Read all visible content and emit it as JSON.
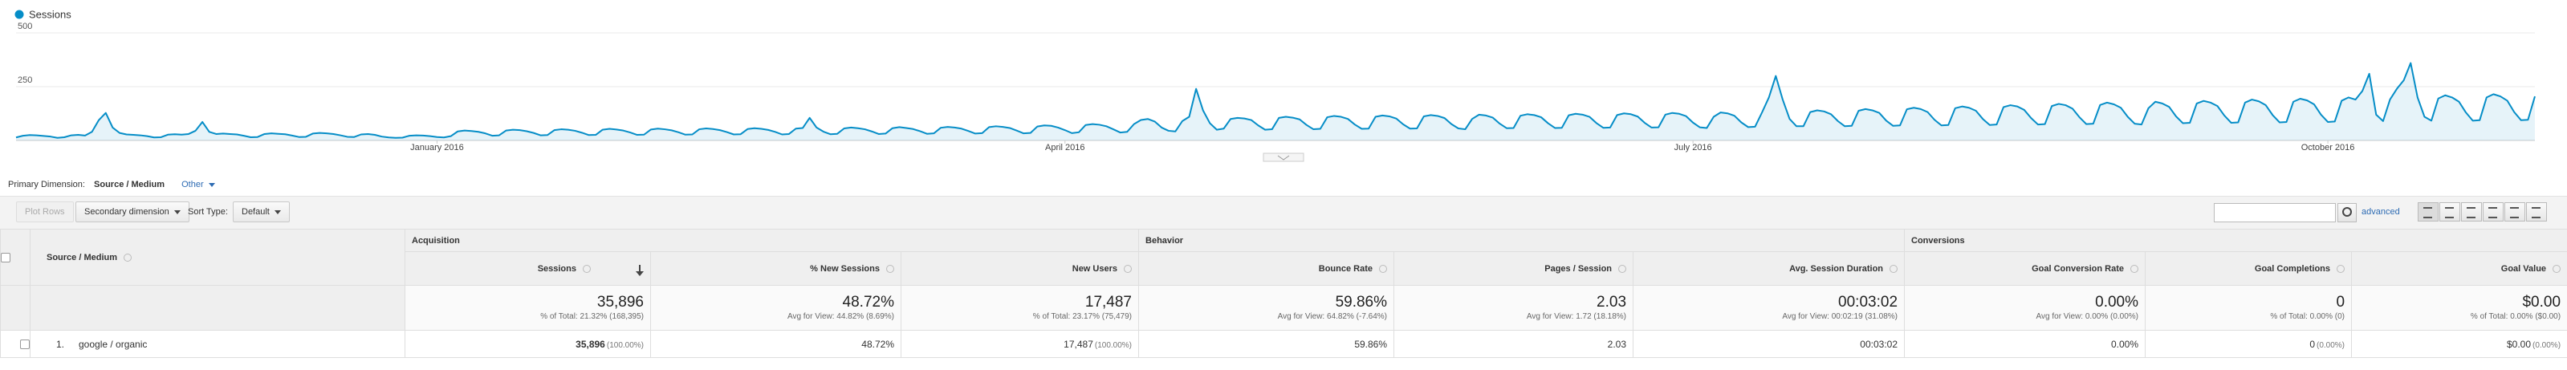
{
  "chart_data": {
    "type": "area",
    "legend": "top-left",
    "grid": true,
    "ylim": [
      0,
      500
    ],
    "yticks": [
      250,
      500
    ],
    "categories": [
      null,
      null,
      null,
      null,
      null,
      null,
      null,
      null,
      null,
      null,
      null,
      null,
      null,
      null,
      null,
      null,
      null,
      null,
      null,
      null,
      null,
      null,
      null,
      null,
      null,
      null,
      null,
      null,
      null,
      null,
      null,
      null,
      null,
      null,
      null,
      null,
      null,
      null,
      null,
      null,
      null,
      null,
      null,
      null,
      null,
      null,
      null,
      null,
      null,
      null,
      null,
      null,
      null,
      null,
      null,
      null,
      null,
      null,
      null,
      null,
      null,
      "January 2016",
      null,
      null,
      null,
      null,
      null,
      null,
      null,
      null,
      null,
      null,
      null,
      null,
      null,
      null,
      null,
      null,
      null,
      null,
      null,
      null,
      null,
      null,
      null,
      null,
      null,
      null,
      null,
      null,
      null,
      null,
      null,
      null,
      null,
      null,
      null,
      null,
      null,
      null,
      null,
      null,
      null,
      null,
      null,
      null,
      null,
      null,
      null,
      null,
      null,
      null,
      null,
      null,
      null,
      null,
      null,
      null,
      null,
      null,
      null,
      null,
      null,
      null,
      null,
      null,
      null,
      null,
      null,
      null,
      null,
      null,
      null,
      null,
      null,
      null,
      null,
      null,
      null,
      null,
      null,
      null,
      null,
      null,
      null,
      null,
      null,
      null,
      null,
      null,
      null,
      null,
      "April 2016",
      null,
      null,
      null,
      null,
      null,
      null,
      null,
      null,
      null,
      null,
      null,
      null,
      null,
      null,
      null,
      null,
      null,
      null,
      null,
      null,
      null,
      null,
      null,
      null,
      null,
      null,
      null,
      null,
      null,
      null,
      null,
      null,
      null,
      null,
      null,
      null,
      null,
      null,
      null,
      null,
      null,
      null,
      null,
      null,
      null,
      null,
      null,
      null,
      null,
      null,
      null,
      null,
      null,
      null,
      null,
      null,
      null,
      null,
      null,
      null,
      null,
      null,
      null,
      null,
      null,
      null,
      null,
      null,
      null,
      null,
      null,
      null,
      null,
      null,
      null,
      null,
      null,
      null,
      null,
      null,
      null,
      null,
      null,
      null,
      null,
      null,
      null,
      null,
      null,
      null,
      "July 2016",
      null,
      null,
      null,
      null,
      null,
      null,
      null,
      null,
      null,
      null,
      null,
      null,
      null,
      null,
      null,
      null,
      null,
      null,
      null,
      null,
      null,
      null,
      null,
      null,
      null,
      null,
      null,
      null,
      null,
      null,
      null,
      null,
      null,
      null,
      null,
      null,
      null,
      null,
      null,
      null,
      null,
      null,
      null,
      null,
      null,
      null,
      null,
      null,
      null,
      null,
      null,
      null,
      null,
      null,
      null,
      null,
      null,
      null,
      null,
      null,
      null,
      null,
      null,
      null,
      null,
      null,
      null,
      null,
      null,
      null,
      null,
      null,
      null,
      null,
      null,
      null,
      null,
      null,
      null,
      null,
      null,
      null,
      null,
      null,
      null,
      null,
      null,
      null,
      null,
      null,
      null,
      "October 2016",
      null,
      null,
      null,
      null,
      null,
      null,
      null,
      null,
      null,
      null,
      null,
      null,
      null,
      null,
      null,
      null,
      null,
      null,
      null,
      null,
      null,
      null,
      null,
      null,
      null,
      null,
      null,
      null,
      null,
      null
    ],
    "series": [
      {
        "name": "Sessions",
        "color": "#058dc7",
        "values": [
          14,
          22,
          25,
          24,
          21,
          18,
          12,
          15,
          24,
          26,
          23,
          40,
          95,
          128,
          60,
          35,
          28,
          26,
          24,
          20,
          14,
          15,
          27,
          29,
          27,
          30,
          45,
          86,
          40,
          30,
          32,
          30,
          28,
          22,
          15,
          16,
          30,
          33,
          31,
          29,
          23,
          16,
          17,
          32,
          35,
          33,
          30,
          24,
          17,
          16,
          28,
          30,
          26,
          18,
          14,
          12,
          13,
          22,
          24,
          23,
          20,
          16,
          14,
          20,
          42,
          46,
          44,
          40,
          33,
          22,
          24,
          46,
          50,
          48,
          43,
          35,
          24,
          25,
          48,
          52,
          50,
          45,
          36,
          25,
          26,
          50,
          54,
          51,
          46,
          37,
          26,
          27,
          51,
          55,
          52,
          47,
          38,
          27,
          28,
          52,
          56,
          53,
          48,
          39,
          28,
          29,
          53,
          57,
          54,
          49,
          40,
          28,
          30,
          55,
          58,
          105,
          60,
          41,
          29,
          31,
          56,
          60,
          57,
          52,
          42,
          30,
          32,
          57,
          62,
          58,
          53,
          43,
          31,
          33,
          59,
          63,
          60,
          55,
          44,
          32,
          34,
          62,
          66,
          63,
          58,
          46,
          33,
          35,
          65,
          70,
          68,
          60,
          48,
          34,
          38,
          72,
          76,
          73,
          66,
          52,
          37,
          40,
          76,
          95,
          100,
          88,
          60,
          45,
          42,
          90,
          110,
          240,
          140,
          80,
          50,
          55,
          100,
          105,
          102,
          95,
          70,
          50,
          52,
          105,
          110,
          106,
          98,
          72,
          52,
          54,
          108,
          114,
          110,
          100,
          74,
          54,
          55,
          110,
          116,
          112,
          102,
          75,
          55,
          56,
          112,
          118,
          114,
          104,
          76,
          56,
          52,
          100,
          120,
          116,
          106,
          78,
          57,
          58,
          115,
          122,
          118,
          108,
          80,
          58,
          59,
          117,
          124,
          120,
          110,
          81,
          59,
          60,
          118,
          126,
          122,
          111,
          82,
          60,
          61,
          120,
          128,
          124,
          113,
          83,
          61,
          58,
          110,
          130,
          126,
          115,
          84,
          62,
          64,
          130,
          200,
          300,
          190,
          100,
          66,
          66,
          132,
          140,
          135,
          122,
          90,
          66,
          68,
          138,
          146,
          140,
          128,
          92,
          68,
          70,
          145,
          152,
          146,
          132,
          96,
          70,
          72,
          150,
          158,
          152,
          138,
          100,
          72,
          74,
          155,
          164,
          158,
          142,
          104,
          74,
          76,
          160,
          170,
          164,
          148,
          108,
          76,
          78,
          165,
          176,
          168,
          152,
          110,
          78,
          74,
          150,
          180,
          172,
          156,
          112,
          80,
          82,
          172,
          184,
          176,
          160,
          116,
          82,
          84,
          176,
          190,
          182,
          164,
          118,
          84,
          86,
          180,
          194,
          186,
          168,
          120,
          86,
          88,
          185,
          200,
          190,
          230,
          310,
          120,
          90,
          190,
          240,
          280,
          360,
          200,
          110,
          92,
          195,
          210,
          200,
          180,
          130,
          92,
          94,
          200,
          215,
          205,
          185,
          132,
          94,
          96,
          205
        ]
      }
    ]
  },
  "primary_dimension": {
    "label": "Primary Dimension:",
    "value": "Source / Medium",
    "other": "Other"
  },
  "toolbar": {
    "plot_rows": "Plot Rows",
    "secondary_dimension": "Secondary dimension",
    "sort_type": "Sort Type:",
    "sort_value": "Default",
    "advanced": "advanced"
  },
  "table": {
    "dimension_header": "Source / Medium",
    "groups": [
      "Acquisition",
      "Behavior",
      "Conversions"
    ],
    "columns": [
      "Sessions",
      "% New Sessions",
      "New Users",
      "Bounce Rate",
      "Pages / Session",
      "Avg. Session Duration",
      "Goal Conversion Rate",
      "Goal Completions",
      "Goal Value"
    ],
    "totals": [
      {
        "value": "35,896",
        "detail": "% of Total: 21.32% (168,395)"
      },
      {
        "value": "48.72%",
        "detail": "Avg for View: 44.82% (8.69%)"
      },
      {
        "value": "17,487",
        "detail": "% of Total: 23.17% (75,479)"
      },
      {
        "value": "59.86%",
        "detail": "Avg for View: 64.82% (-7.64%)"
      },
      {
        "value": "2.03",
        "detail": "Avg for View: 1.72 (18.18%)"
      },
      {
        "value": "00:03:02",
        "detail": "Avg for View: 00:02:19 (31.08%)"
      },
      {
        "value": "0.00%",
        "detail": "Avg for View: 0.00% (0.00%)"
      },
      {
        "value": "0",
        "detail": "% of Total: 0.00% (0)"
      },
      {
        "value": "$0.00",
        "detail": "% of Total: 0.00% ($0.00)"
      }
    ],
    "rows": [
      {
        "index": "1.",
        "name": "google / organic",
        "cells": [
          {
            "value": "35,896",
            "share": "(100.00%)"
          },
          {
            "value": "48.72%"
          },
          {
            "value": "17,487",
            "share": "(100.00%)"
          },
          {
            "value": "59.86%"
          },
          {
            "value": "2.03"
          },
          {
            "value": "00:03:02"
          },
          {
            "value": "0.00%"
          },
          {
            "value": "0",
            "share": "(0.00%)"
          },
          {
            "value": "$0.00",
            "share": "(0.00%)"
          }
        ]
      }
    ]
  }
}
